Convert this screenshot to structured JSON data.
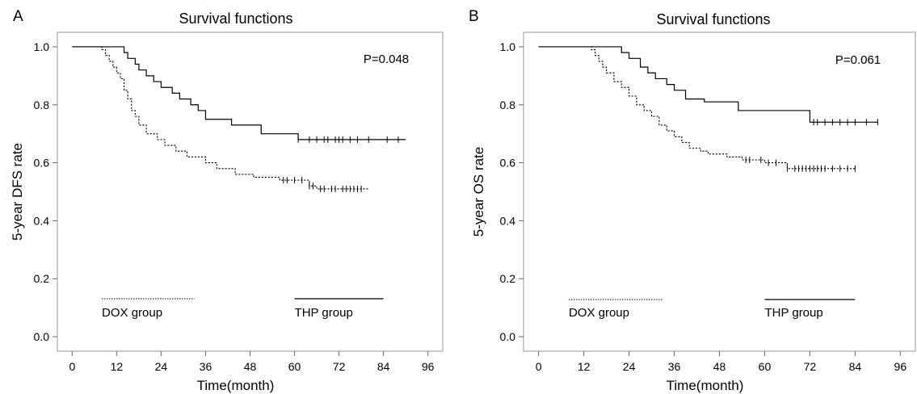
{
  "chart_data": [
    {
      "type": "line",
      "panel_letter": "A",
      "title": "Survival functions",
      "xlabel": "Time(month)",
      "ylabel": "5-year DFS rate",
      "xlim": [
        -4,
        100
      ],
      "ylim": [
        -0.05,
        1.05
      ],
      "xticks": [
        0,
        12,
        24,
        36,
        48,
        60,
        72,
        84,
        96
      ],
      "yticks": [
        "0.0",
        "0.2",
        "0.4",
        "0.6",
        "0.8",
        "1.0"
      ],
      "annotation": "P=0.048",
      "legend": [
        {
          "name": "DOX group",
          "style": "dotted"
        },
        {
          "name": "THP group",
          "style": "solid"
        }
      ],
      "series": [
        {
          "name": "THP group",
          "style": "solid",
          "steps": [
            [
              0,
              1.0
            ],
            [
              14,
              0.98
            ],
            [
              15,
              0.96
            ],
            [
              17,
              0.94
            ],
            [
              18,
              0.92
            ],
            [
              20,
              0.9
            ],
            [
              22,
              0.88
            ],
            [
              24,
              0.86
            ],
            [
              27,
              0.84
            ],
            [
              29,
              0.82
            ],
            [
              32,
              0.8
            ],
            [
              34,
              0.78
            ],
            [
              36,
              0.75
            ],
            [
              43,
              0.73
            ],
            [
              51,
              0.7
            ],
            [
              61,
              0.68
            ],
            [
              90,
              0.68
            ]
          ],
          "censored": [
            61,
            64,
            66,
            68,
            69,
            71,
            72,
            73,
            75,
            77,
            80,
            85,
            88
          ]
        },
        {
          "name": "DOX group",
          "style": "dotted",
          "steps": [
            [
              0,
              1.0
            ],
            [
              8,
              0.99
            ],
            [
              9,
              0.97
            ],
            [
              10,
              0.95
            ],
            [
              11,
              0.93
            ],
            [
              12,
              0.91
            ],
            [
              13,
              0.89
            ],
            [
              14,
              0.85
            ],
            [
              15,
              0.82
            ],
            [
              16,
              0.78
            ],
            [
              17,
              0.76
            ],
            [
              18,
              0.73
            ],
            [
              20,
              0.7
            ],
            [
              23,
              0.68
            ],
            [
              25,
              0.66
            ],
            [
              28,
              0.64
            ],
            [
              31,
              0.62
            ],
            [
              36,
              0.6
            ],
            [
              39,
              0.58
            ],
            [
              44,
              0.56
            ],
            [
              49,
              0.55
            ],
            [
              56,
              0.54
            ],
            [
              64,
              0.52
            ],
            [
              66,
              0.51
            ],
            [
              80,
              0.51
            ]
          ],
          "censored": [
            57,
            58,
            60,
            62,
            64,
            65,
            67,
            68,
            70,
            71,
            73,
            74,
            75,
            76,
            77,
            78
          ]
        }
      ]
    },
    {
      "type": "line",
      "panel_letter": "B",
      "title": "Survival functions",
      "xlabel": "Time(month)",
      "ylabel": "5-year OS rate",
      "xlim": [
        -4,
        100
      ],
      "ylim": [
        -0.05,
        1.05
      ],
      "xticks": [
        0,
        12,
        24,
        36,
        48,
        60,
        72,
        84,
        96
      ],
      "yticks": [
        "0.0",
        "0.2",
        "0.4",
        "0.6",
        "0.8",
        "1.0"
      ],
      "annotation": "P=0.061",
      "legend": [
        {
          "name": "DOX group",
          "style": "dotted"
        },
        {
          "name": "THP group",
          "style": "solid"
        }
      ],
      "series": [
        {
          "name": "THP group",
          "style": "solid",
          "steps": [
            [
              0,
              1.0
            ],
            [
              22,
              0.98
            ],
            [
              24,
              0.96
            ],
            [
              27,
              0.93
            ],
            [
              29,
              0.91
            ],
            [
              31,
              0.89
            ],
            [
              34,
              0.87
            ],
            [
              36,
              0.85
            ],
            [
              39,
              0.82
            ],
            [
              44,
              0.81
            ],
            [
              53,
              0.78
            ],
            [
              72,
              0.74
            ],
            [
              90,
              0.74
            ]
          ],
          "censored": [
            73,
            74,
            76,
            78,
            80,
            82,
            84,
            87,
            90
          ]
        },
        {
          "name": "DOX group",
          "style": "dotted",
          "steps": [
            [
              0,
              1.0
            ],
            [
              14,
              0.99
            ],
            [
              15,
              0.97
            ],
            [
              16,
              0.95
            ],
            [
              17,
              0.93
            ],
            [
              18,
              0.91
            ],
            [
              20,
              0.88
            ],
            [
              22,
              0.86
            ],
            [
              24,
              0.83
            ],
            [
              26,
              0.8
            ],
            [
              28,
              0.78
            ],
            [
              30,
              0.76
            ],
            [
              32,
              0.73
            ],
            [
              34,
              0.71
            ],
            [
              36,
              0.69
            ],
            [
              38,
              0.67
            ],
            [
              40,
              0.65
            ],
            [
              43,
              0.64
            ],
            [
              45,
              0.63
            ],
            [
              50,
              0.62
            ],
            [
              54,
              0.61
            ],
            [
              60,
              0.6
            ],
            [
              66,
              0.58
            ],
            [
              84,
              0.58
            ]
          ],
          "censored": [
            55,
            56,
            59,
            61,
            63,
            66,
            68,
            69,
            70,
            71,
            72,
            73,
            74,
            75,
            76,
            78,
            80,
            82,
            84
          ]
        }
      ]
    }
  ]
}
